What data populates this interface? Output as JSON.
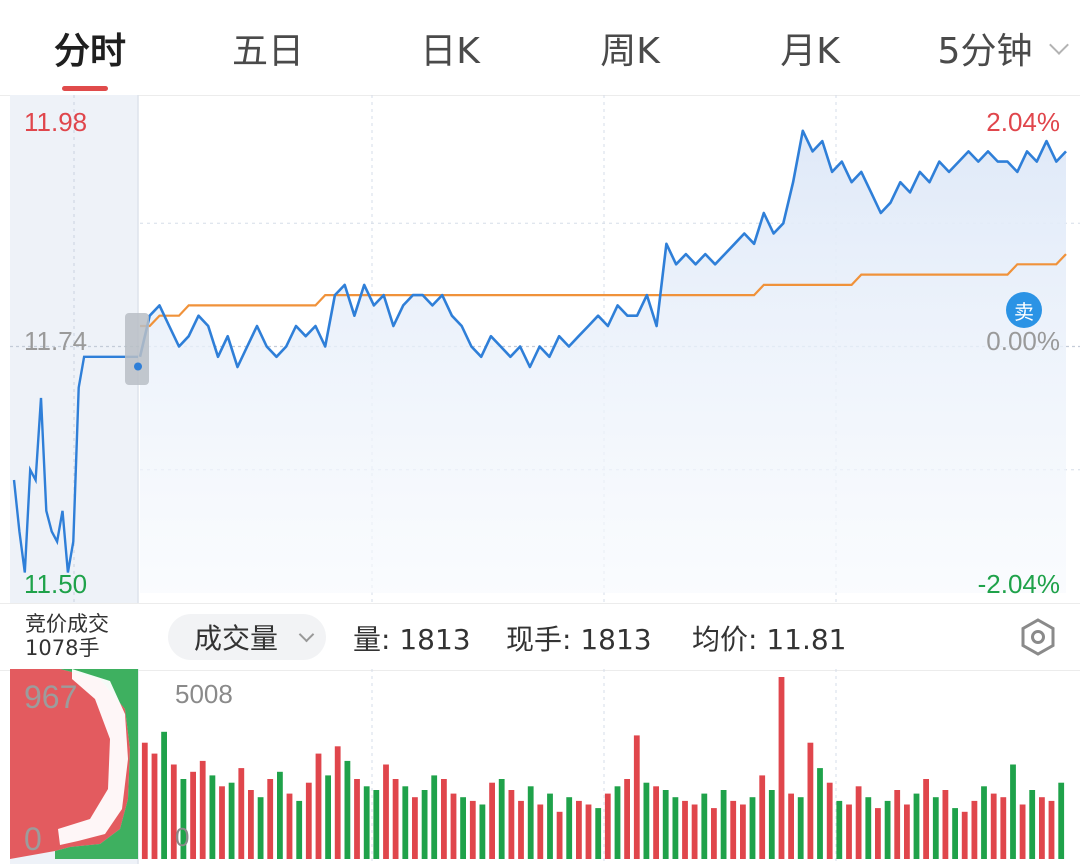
{
  "tabs": [
    {
      "label": "分时",
      "active": true
    },
    {
      "label": "五日",
      "active": false
    },
    {
      "label": "日K",
      "active": false
    },
    {
      "label": "周K",
      "active": false
    },
    {
      "label": "月K",
      "active": false
    },
    {
      "label": "5分钟",
      "active": false,
      "has_dropdown": true
    }
  ],
  "price_axis": {
    "left_top": "11.98",
    "left_mid": "11.74",
    "left_bottom": "11.50",
    "right_top": "2.04%",
    "right_mid": "0.00%",
    "right_bottom": "-2.04%"
  },
  "sell_badge": "卖",
  "info": {
    "auction_line1": "竞价成交",
    "auction_line2": "1078手",
    "volume_selector": "成交量",
    "volume_text": "量: 1813",
    "current_hand_text": "现手: 1813",
    "avg_price_text": "均价: 11.81"
  },
  "volume_axis": {
    "auction_max": "967",
    "auction_min": "0",
    "max": "5008",
    "min": "0"
  },
  "colors": {
    "up": "#e0464c",
    "down": "#1fa24a",
    "price_line": "#2f7fd8",
    "avg_line": "#f0923a"
  },
  "chart_data": {
    "type": "line",
    "y_range": [
      11.5,
      11.98
    ],
    "prev_close": 11.74,
    "price_series": [
      11.73,
      11.77,
      11.78,
      11.76,
      11.74,
      11.75,
      11.77,
      11.76,
      11.73,
      11.75,
      11.72,
      11.74,
      11.76,
      11.74,
      11.73,
      11.74,
      11.76,
      11.75,
      11.76,
      11.74,
      11.79,
      11.8,
      11.77,
      11.8,
      11.78,
      11.79,
      11.76,
      11.78,
      11.79,
      11.79,
      11.78,
      11.79,
      11.77,
      11.76,
      11.74,
      11.73,
      11.75,
      11.74,
      11.73,
      11.74,
      11.72,
      11.74,
      11.73,
      11.75,
      11.74,
      11.75,
      11.76,
      11.77,
      11.76,
      11.78,
      11.77,
      11.77,
      11.79,
      11.76,
      11.84,
      11.82,
      11.83,
      11.82,
      11.83,
      11.82,
      11.83,
      11.84,
      11.85,
      11.84,
      11.87,
      11.85,
      11.86,
      11.9,
      11.95,
      11.93,
      11.94,
      11.91,
      11.92,
      11.9,
      11.91,
      11.89,
      11.87,
      11.88,
      11.9,
      11.89,
      11.91,
      11.9,
      11.92,
      11.91,
      11.92,
      11.93,
      11.92,
      11.93,
      11.92,
      11.92,
      11.91,
      11.93,
      11.92,
      11.94,
      11.92,
      11.93
    ],
    "avg_series": [
      11.76,
      11.76,
      11.77,
      11.77,
      11.77,
      11.78,
      11.78,
      11.78,
      11.78,
      11.78,
      11.78,
      11.78,
      11.78,
      11.78,
      11.78,
      11.78,
      11.78,
      11.78,
      11.78,
      11.79,
      11.79,
      11.79,
      11.79,
      11.79,
      11.79,
      11.79,
      11.79,
      11.79,
      11.79,
      11.79,
      11.79,
      11.79,
      11.79,
      11.79,
      11.79,
      11.79,
      11.79,
      11.79,
      11.79,
      11.79,
      11.79,
      11.79,
      11.79,
      11.79,
      11.79,
      11.79,
      11.79,
      11.79,
      11.79,
      11.79,
      11.79,
      11.79,
      11.79,
      11.79,
      11.79,
      11.79,
      11.79,
      11.79,
      11.79,
      11.79,
      11.79,
      11.79,
      11.79,
      11.79,
      11.8,
      11.8,
      11.8,
      11.8,
      11.8,
      11.8,
      11.8,
      11.8,
      11.8,
      11.8,
      11.81,
      11.81,
      11.81,
      11.81,
      11.81,
      11.81,
      11.81,
      11.81,
      11.81,
      11.81,
      11.81,
      11.81,
      11.81,
      11.81,
      11.81,
      11.81,
      11.82,
      11.82,
      11.82,
      11.82,
      11.82,
      11.83
    ],
    "auction_series": [
      11.61,
      11.56,
      11.52,
      11.62,
      11.61,
      11.69,
      11.58,
      11.56,
      11.55,
      11.58,
      11.52,
      11.55,
      11.7,
      11.73,
      11.73,
      11.73,
      11.73,
      11.73,
      11.73,
      11.73,
      11.73,
      11.73,
      11.73,
      11.73
    ],
    "volume_max": 5008,
    "volume_series": [
      3200,
      2900,
      3500,
      2600,
      2200,
      2400,
      2700,
      2300,
      2000,
      2100,
      2500,
      1900,
      1700,
      2200,
      2400,
      1800,
      1600,
      2100,
      2900,
      2300,
      3100,
      2700,
      2200,
      2000,
      1900,
      2600,
      2200,
      2000,
      1700,
      1900,
      2300,
      2200,
      1800,
      1700,
      1600,
      1500,
      2100,
      2200,
      1900,
      1600,
      2000,
      1500,
      1800,
      1300,
      1700,
      1600,
      1500,
      1400,
      1800,
      2000,
      2200,
      3400,
      2100,
      2000,
      1900,
      1700,
      1600,
      1500,
      1800,
      1400,
      1900,
      1600,
      1500,
      1700,
      2300,
      1900,
      5008,
      1800,
      1700,
      3200,
      2500,
      2100,
      1600,
      1500,
      2000,
      1700,
      1400,
      1600,
      1900,
      1500,
      1800,
      2200,
      1700,
      1900,
      1400,
      1300,
      1600,
      2000,
      1800,
      1700,
      2600,
      1500,
      1900,
      1700,
      1600,
      2100
    ],
    "volume_dir": [
      1,
      1,
      0,
      1,
      0,
      1,
      1,
      0,
      1,
      0,
      1,
      1,
      0,
      1,
      0,
      1,
      0,
      1,
      1,
      0,
      1,
      0,
      1,
      0,
      0,
      1,
      1,
      0,
      1,
      0,
      0,
      1,
      1,
      0,
      1,
      0,
      1,
      0,
      1,
      1,
      0,
      1,
      0,
      1,
      0,
      1,
      1,
      0,
      1,
      0,
      1,
      1,
      0,
      1,
      0,
      0,
      1,
      1,
      0,
      1,
      0,
      1,
      1,
      0,
      1,
      0,
      1,
      1,
      0,
      1,
      0,
      1,
      0,
      1,
      1,
      0,
      1,
      0,
      1,
      1,
      0,
      1,
      0,
      1,
      0,
      1,
      1,
      0,
      1,
      1,
      0,
      1,
      0,
      1,
      1,
      0
    ]
  }
}
